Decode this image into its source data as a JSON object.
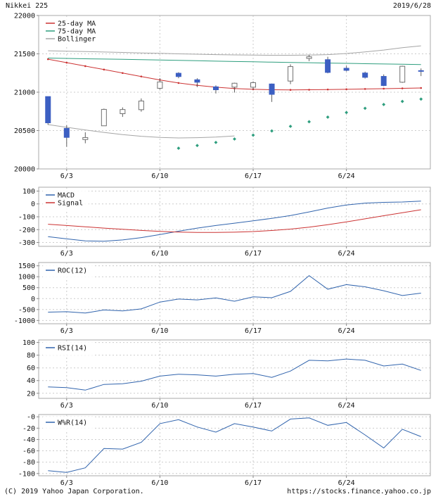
{
  "header": {
    "title": "Nikkei 225",
    "date": "2019/6/28"
  },
  "footer": {
    "copyright": "(C) 2019 Yahoo Japan Corporation.",
    "url": "https://stocks.finance.yahoo.co.jp"
  },
  "chart_data": [
    {
      "type": "candlestick",
      "name": "price",
      "title": "Nikkei 225",
      "ylim": [
        20000,
        22000
      ],
      "ytick_values": [
        22000,
        21500,
        21000,
        20500,
        20000
      ],
      "ytick_labels": [
        "22000",
        "21500",
        "21000",
        "20500",
        "20000"
      ],
      "xtick_indices": [
        1,
        6,
        11,
        16
      ],
      "xtick_labels": [
        "6/3",
        "6/10",
        "6/17",
        "6/24"
      ],
      "legend": [
        {
          "label": "25-day MA",
          "color": "#cc3333"
        },
        {
          "label": "75-day MA",
          "color": "#2e9e7e"
        },
        {
          "label": "Bollinger",
          "color": "#a5a5a5"
        }
      ],
      "candle_colors": {
        "up_fill": "#ffffff",
        "up_border": "#707070",
        "down_fill": "#3c5fc2",
        "down_border": "#3c5fc2",
        "wick": "#606060"
      },
      "dates": [
        "5/31",
        "6/3",
        "6/4",
        "6/5",
        "6/6",
        "6/7",
        "6/10",
        "6/11",
        "6/12",
        "6/13",
        "6/14",
        "6/17",
        "6/18",
        "6/19",
        "6/20",
        "6/21",
        "6/24",
        "6/25",
        "6/26",
        "6/27",
        "6/28"
      ],
      "candles": [
        [
          20943,
          20943,
          20575,
          20601
        ],
        [
          20528,
          20569,
          20289,
          20411
        ],
        [
          20383,
          20478,
          20334,
          20409
        ],
        [
          20562,
          20786,
          20562,
          20776
        ],
        [
          20720,
          20802,
          20678,
          20774
        ],
        [
          20772,
          20919,
          20746,
          20885
        ],
        [
          21051,
          21184,
          21035,
          21134
        ],
        [
          21247,
          21261,
          21182,
          21204
        ],
        [
          21162,
          21182,
          21067,
          21130
        ],
        [
          21070,
          21089,
          20983,
          21032
        ],
        [
          21066,
          21124,
          20995,
          21117
        ],
        [
          21065,
          21141,
          21035,
          21124
        ],
        [
          21107,
          21113,
          20873,
          20972
        ],
        [
          21145,
          21363,
          21105,
          21334
        ],
        [
          21440,
          21489,
          21405,
          21462
        ],
        [
          21424,
          21462,
          21246,
          21258
        ],
        [
          21312,
          21344,
          21270,
          21285
        ],
        [
          21250,
          21268,
          21178,
          21194
        ],
        [
          21206,
          21232,
          21078,
          21087
        ],
        [
          21130,
          21345,
          21122,
          21338
        ],
        [
          21281,
          21310,
          21210,
          21276
        ]
      ],
      "overlays": [
        {
          "name": "25-day MA",
          "style": "line-markers",
          "color": "#cc3333",
          "values": [
            21430,
            21385,
            21340,
            21295,
            21250,
            21205,
            21160,
            21120,
            21090,
            21065,
            21048,
            21038,
            21032,
            21030,
            21032,
            21035,
            21038,
            21042,
            21046,
            21050,
            21055
          ]
        },
        {
          "name": "75-day MA",
          "style": "line",
          "color": "#2e9e7e",
          "values": [
            21445,
            21440,
            21436,
            21432,
            21428,
            21424,
            21420,
            21415,
            21410,
            21405,
            21400,
            21396,
            21392,
            21388,
            21384,
            21380,
            21376,
            21372,
            21368,
            21364,
            21360
          ]
        },
        {
          "name": "Bollinger upper",
          "style": "line",
          "color": "#a5a5a5",
          "values": [
            21540,
            21535,
            21530,
            21524,
            21518,
            21512,
            21506,
            21500,
            21495,
            21490,
            21486,
            21484,
            21482,
            21482,
            21484,
            21490,
            21505,
            21525,
            21550,
            21580,
            21605
          ]
        },
        {
          "name": "Bollinger lower",
          "style": "line",
          "color": "#a5a5a5",
          "values": [
            20578,
            20542,
            20508,
            20476,
            20448,
            20426,
            20410,
            20404,
            20407,
            20416,
            20430,
            null,
            null,
            null,
            null,
            null,
            null,
            null,
            null,
            null,
            null
          ]
        },
        {
          "name": "Bollinger lower rising",
          "style": "dots",
          "color": "#2e9e7e",
          "values": [
            null,
            null,
            null,
            null,
            null,
            null,
            null,
            20270,
            20305,
            20345,
            20390,
            20440,
            20495,
            20555,
            20615,
            20675,
            20735,
            20790,
            20840,
            20880,
            20910
          ]
        }
      ]
    },
    {
      "type": "line",
      "name": "macd",
      "ylim": [
        -330,
        130
      ],
      "ytick_values": [
        100,
        0,
        -100,
        -200,
        -300
      ],
      "ytick_labels": [
        "100",
        "0",
        "-100",
        "-200",
        "-300"
      ],
      "xtick_indices": [
        1,
        6,
        11,
        16
      ],
      "xtick_labels": [
        "6/3",
        "6/10",
        "6/17",
        "6/24"
      ],
      "legend": [
        {
          "label": "MACD",
          "color": "#3164ad"
        },
        {
          "label": "Signal",
          "color": "#cc3333"
        }
      ],
      "series": [
        {
          "name": "MACD",
          "style": "line",
          "color": "#3164ad",
          "values": [
            -255,
            -272,
            -288,
            -290,
            -280,
            -262,
            -238,
            -212,
            -188,
            -168,
            -150,
            -132,
            -112,
            -90,
            -62,
            -32,
            -8,
            6,
            12,
            15,
            22
          ]
        },
        {
          "name": "Signal",
          "style": "line",
          "color": "#cc3333",
          "values": [
            -158,
            -168,
            -178,
            -188,
            -197,
            -206,
            -214,
            -219,
            -222,
            -222,
            -220,
            -215,
            -207,
            -196,
            -181,
            -162,
            -140,
            -116,
            -92,
            -68,
            -45
          ]
        }
      ]
    },
    {
      "type": "line",
      "name": "roc-12",
      "ylim": [
        -1150,
        1650
      ],
      "ytick_values": [
        1500,
        1000,
        500,
        0,
        -500,
        -1000
      ],
      "ytick_labels": [
        "1500",
        "1000",
        "500",
        "0",
        "-500",
        "-1000"
      ],
      "xtick_indices": [
        1,
        6,
        11,
        16
      ],
      "xtick_labels": [
        "6/3",
        "6/10",
        "6/17",
        "6/24"
      ],
      "legend": [
        {
          "label": "ROC(12)",
          "color": "#3164ad"
        }
      ],
      "series": [
        {
          "name": "ROC(12)",
          "style": "line",
          "color": "#3164ad",
          "values": [
            -620,
            -600,
            -660,
            -520,
            -560,
            -470,
            -160,
            -20,
            -60,
            30,
            -120,
            80,
            40,
            330,
            1050,
            430,
            640,
            540,
            360,
            140,
            250
          ]
        }
      ]
    },
    {
      "type": "line",
      "name": "rsi-14",
      "ylim": [
        12,
        104
      ],
      "ytick_values": [
        100,
        80,
        60,
        40,
        20
      ],
      "ytick_labels": [
        "100",
        "80",
        "60",
        "40",
        "20"
      ],
      "xtick_indices": [
        1,
        6,
        11,
        16
      ],
      "xtick_labels": [
        "6/3",
        "6/10",
        "6/17",
        "6/24"
      ],
      "legend": [
        {
          "label": "RSI(14)",
          "color": "#3164ad"
        }
      ],
      "series": [
        {
          "name": "RSI(14)",
          "style": "line",
          "color": "#3164ad",
          "values": [
            30,
            29,
            25,
            34,
            35,
            39,
            47,
            50,
            49,
            47,
            50,
            51,
            45,
            55,
            72,
            71,
            74,
            72,
            63,
            66,
            56
          ]
        }
      ]
    },
    {
      "type": "line",
      "name": "williams-r-14",
      "ylim": [
        -104,
        4
      ],
      "ytick_values": [
        0,
        -20,
        -40,
        -60,
        -80,
        -100
      ],
      "ytick_labels": [
        "-0",
        "-20",
        "-40",
        "-60",
        "-80",
        "-100"
      ],
      "xtick_indices": [
        1,
        6,
        11,
        16
      ],
      "xtick_labels": [
        "6/3",
        "6/10",
        "6/17",
        "6/24"
      ],
      "legend": [
        {
          "label": "W%R(14)",
          "color": "#3164ad"
        }
      ],
      "series": [
        {
          "name": "W%R(14)",
          "style": "line",
          "color": "#3164ad",
          "values": [
            -95,
            -98,
            -90,
            -56,
            -57,
            -45,
            -12,
            -5,
            -18,
            -27,
            -12,
            -18,
            -25,
            -4,
            -2,
            -15,
            -10,
            -32,
            -55,
            -22,
            -35
          ]
        }
      ]
    }
  ]
}
